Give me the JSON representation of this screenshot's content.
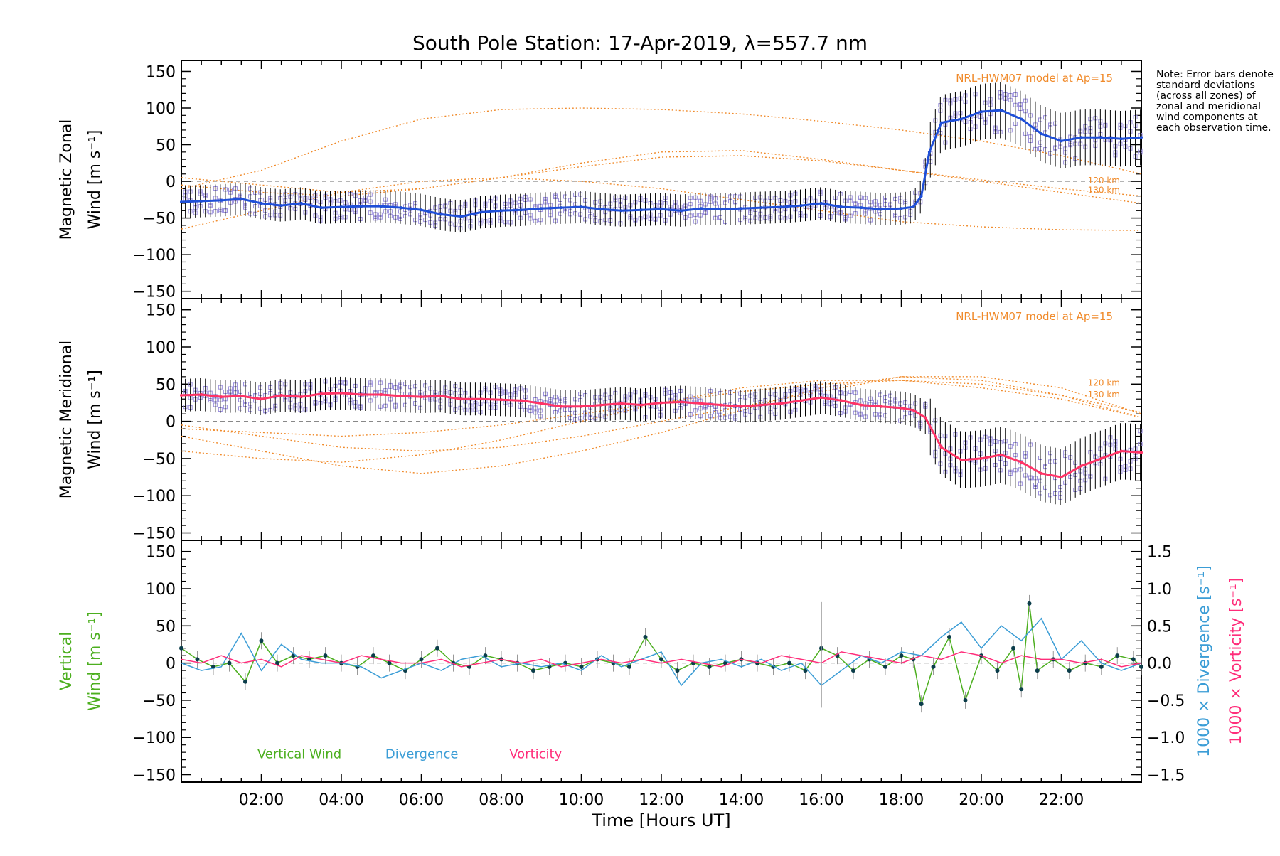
{
  "title": "South Pole Station: 17-Apr-2019, λ=557.7 nm",
  "note": "Note: Error bars denote standard deviations (across all zones) of zonal and meridional wind components at each observation time.",
  "colors": {
    "zonal": "#1f4fd8",
    "zonal_light": "#5aa6e8",
    "meridional": "#ff3366",
    "vertical": "#4caf1f",
    "divergence": "#3b9dd6",
    "vorticity": "#ff2d7a",
    "model": "#f08a2a",
    "scatter": "#9a8fdc",
    "errorbar": "#000000"
  },
  "chart_data": [
    {
      "id": "zonal",
      "type": "line",
      "title": "South Pole Station: 17-Apr-2019, λ=557.7 nm",
      "ylabel_line1": "Magnetic Zonal",
      "ylabel_line2": "Wind [m s⁻¹]",
      "xlim": [
        0,
        24
      ],
      "ylim": [
        -160,
        165
      ],
      "y_ticks": [
        150,
        100,
        50,
        0,
        -50,
        -100,
        -150
      ],
      "y_tick_labels": [
        "150",
        "100",
        "50",
        "0",
        "−50",
        "−100",
        "−150"
      ],
      "model_label": "NRL-HWM07 model at Ap=15",
      "model_heights": [
        "120 km",
        "130 km"
      ],
      "series": [
        {
          "name": "Magnetic Zonal Wind",
          "x": [
            0.0,
            0.5,
            1.0,
            1.5,
            2.0,
            2.5,
            3.0,
            3.5,
            4.0,
            4.5,
            5.0,
            5.5,
            6.0,
            6.5,
            7.0,
            7.5,
            8.0,
            8.5,
            9.0,
            9.5,
            10.0,
            10.5,
            11.0,
            11.5,
            12.0,
            12.5,
            13.0,
            13.5,
            14.0,
            14.5,
            15.0,
            15.5,
            16.0,
            16.5,
            17.0,
            17.5,
            18.0,
            18.3,
            18.5,
            18.7,
            19.0,
            19.5,
            20.0,
            20.5,
            21.0,
            21.5,
            22.0,
            22.5,
            23.0,
            23.5,
            24.0
          ],
          "values": [
            -28,
            -27,
            -26,
            -24,
            -30,
            -33,
            -30,
            -36,
            -35,
            -34,
            -34,
            -36,
            -39,
            -45,
            -48,
            -42,
            -40,
            -39,
            -37,
            -36,
            -35,
            -38,
            -40,
            -39,
            -38,
            -40,
            -37,
            -38,
            -37,
            -36,
            -35,
            -33,
            -30,
            -35,
            -36,
            -38,
            -37,
            -35,
            -20,
            40,
            80,
            85,
            95,
            97,
            85,
            65,
            55,
            60,
            60,
            58,
            60
          ]
        }
      ],
      "model_curves": [
        {
          "name": "model-a",
          "x": [
            0,
            2,
            4,
            6,
            8,
            10,
            12,
            14,
            16,
            18,
            20,
            22,
            24
          ],
          "values": [
            -10,
            15,
            55,
            85,
            98,
            100,
            98,
            92,
            82,
            70,
            55,
            35,
            10
          ]
        },
        {
          "name": "model-b",
          "x": [
            0,
            2,
            4,
            6,
            8,
            10,
            12,
            14,
            16,
            18,
            20,
            22,
            24
          ],
          "values": [
            5,
            -5,
            -15,
            -10,
            5,
            25,
            40,
            42,
            30,
            15,
            0,
            -15,
            -30
          ]
        },
        {
          "name": "model-c",
          "x": [
            0,
            2,
            4,
            6,
            8,
            10,
            12,
            14,
            16,
            18,
            20,
            22,
            24
          ],
          "values": [
            -5,
            -15,
            -20,
            -10,
            5,
            20,
            33,
            35,
            28,
            15,
            2,
            -10,
            -20
          ]
        },
        {
          "name": "model-d",
          "x": [
            0,
            2,
            4,
            6,
            8,
            10,
            12,
            14,
            16,
            18,
            20,
            22,
            24
          ],
          "values": [
            -65,
            -40,
            -15,
            0,
            5,
            0,
            -10,
            -25,
            -40,
            -55,
            -62,
            -66,
            -67
          ]
        }
      ]
    },
    {
      "id": "meridional",
      "type": "line",
      "ylabel_line1": "Magnetic Meridional",
      "ylabel_line2": "Wind [m s⁻¹]",
      "xlim": [
        0,
        24
      ],
      "ylim": [
        -160,
        165
      ],
      "y_ticks": [
        150,
        100,
        50,
        0,
        -50,
        -100,
        -150
      ],
      "y_tick_labels": [
        "150",
        "100",
        "50",
        "0",
        "−50",
        "−100",
        "−150"
      ],
      "model_label": "NRL-HWM07 model at Ap=15",
      "model_heights": [
        "120 km",
        "130 km"
      ],
      "series": [
        {
          "name": "Magnetic Meridional Wind",
          "x": [
            0.0,
            0.5,
            1.0,
            1.5,
            2.0,
            2.5,
            3.0,
            3.5,
            4.0,
            4.5,
            5.0,
            5.5,
            6.0,
            6.5,
            7.0,
            7.5,
            8.0,
            8.5,
            9.0,
            9.5,
            10.0,
            10.5,
            11.0,
            11.5,
            12.0,
            12.5,
            13.0,
            13.5,
            14.0,
            14.5,
            15.0,
            15.5,
            16.0,
            16.5,
            17.0,
            17.5,
            18.0,
            18.3,
            18.6,
            19.0,
            19.5,
            20.0,
            20.5,
            21.0,
            21.5,
            22.0,
            22.5,
            23.0,
            23.5,
            24.0
          ],
          "values": [
            35,
            36,
            33,
            34,
            30,
            35,
            33,
            37,
            38,
            36,
            36,
            34,
            33,
            34,
            30,
            30,
            29,
            28,
            24,
            20,
            20,
            22,
            24,
            22,
            25,
            26,
            24,
            22,
            20,
            22,
            24,
            28,
            32,
            28,
            22,
            20,
            18,
            15,
            5,
            -35,
            -52,
            -50,
            -45,
            -55,
            -70,
            -75,
            -60,
            -50,
            -40,
            -42
          ]
        }
      ],
      "model_curves": [
        {
          "name": "model-a",
          "x": [
            0,
            2,
            4,
            6,
            8,
            10,
            12,
            14,
            16,
            18,
            20,
            22,
            24
          ],
          "values": [
            -5,
            -20,
            -35,
            -40,
            -35,
            -20,
            0,
            20,
            40,
            60,
            60,
            45,
            10
          ]
        },
        {
          "name": "model-b",
          "x": [
            0,
            2,
            4,
            6,
            8,
            10,
            12,
            14,
            16,
            18,
            20,
            22,
            24
          ],
          "values": [
            -20,
            -40,
            -60,
            -70,
            -60,
            -40,
            -15,
            15,
            45,
            60,
            55,
            35,
            5
          ]
        },
        {
          "name": "model-c",
          "x": [
            0,
            2,
            4,
            6,
            8,
            10,
            12,
            14,
            16,
            18,
            20,
            22,
            24
          ],
          "values": [
            -10,
            -15,
            -20,
            -15,
            -5,
            10,
            25,
            40,
            50,
            55,
            50,
            35,
            12
          ]
        },
        {
          "name": "model-d",
          "x": [
            0,
            2,
            4,
            6,
            8,
            10,
            12,
            14,
            16,
            18,
            20,
            22,
            24
          ],
          "values": [
            -40,
            -50,
            -55,
            -45,
            -25,
            0,
            25,
            45,
            55,
            55,
            45,
            30,
            5
          ]
        }
      ]
    },
    {
      "id": "vertical",
      "type": "line",
      "ylabel_line1": "Vertical",
      "ylabel_line2": "Wind [m s⁻¹]",
      "ylabel_right1": "1000 × Divergence [s⁻¹]",
      "ylabel_right2": "1000 × Vorticity [s⁻¹]",
      "xlabel": "Time [Hours UT]",
      "xlim": [
        0,
        24
      ],
      "ylim": [
        -160,
        165
      ],
      "y_ticks": [
        150,
        100,
        50,
        0,
        -50,
        -100,
        -150
      ],
      "y_tick_labels": [
        "150",
        "100",
        "50",
        "0",
        "−50",
        "−100",
        "−150"
      ],
      "y2lim": [
        -1.6,
        1.65
      ],
      "y2_ticks": [
        1.5,
        1.0,
        0.5,
        0.0,
        -0.5,
        -1.0,
        -1.5
      ],
      "y2_tick_labels": [
        "1.5",
        "1.0",
        "0.5",
        "0.0",
        "−0.5",
        "−1.0",
        "−1.5"
      ],
      "x_ticks": [
        2,
        4,
        6,
        8,
        10,
        12,
        14,
        16,
        18,
        20,
        22
      ],
      "x_tick_labels": [
        "02:00",
        "04:00",
        "06:00",
        "08:00",
        "10:00",
        "12:00",
        "14:00",
        "16:00",
        "18:00",
        "20:00",
        "22:00"
      ],
      "legend": [
        "Vertical Wind",
        "Divergence",
        "Vorticity"
      ],
      "series": [
        {
          "name": "Vertical Wind",
          "axis": "left",
          "x": [
            0.0,
            0.4,
            0.8,
            1.2,
            1.6,
            2.0,
            2.4,
            2.8,
            3.2,
            3.6,
            4.0,
            4.4,
            4.8,
            5.2,
            5.6,
            6.0,
            6.4,
            6.8,
            7.2,
            7.6,
            8.0,
            8.4,
            8.8,
            9.2,
            9.6,
            10.0,
            10.4,
            10.8,
            11.2,
            11.6,
            12.0,
            12.4,
            12.8,
            13.2,
            13.6,
            14.0,
            14.4,
            14.8,
            15.2,
            15.6,
            16.0,
            16.4,
            16.8,
            17.2,
            17.6,
            18.0,
            18.3,
            18.5,
            18.8,
            19.2,
            19.6,
            20.0,
            20.4,
            20.8,
            21.0,
            21.2,
            21.4,
            21.8,
            22.2,
            22.6,
            23.0,
            23.4,
            23.8,
            24.0
          ],
          "values": [
            20,
            5,
            -5,
            0,
            -25,
            30,
            0,
            10,
            5,
            10,
            0,
            -5,
            10,
            0,
            -10,
            5,
            20,
            0,
            -5,
            10,
            5,
            0,
            -10,
            -5,
            0,
            -5,
            5,
            0,
            -5,
            35,
            5,
            -10,
            0,
            -5,
            0,
            5,
            0,
            -5,
            0,
            -10,
            20,
            10,
            -10,
            5,
            -5,
            10,
            5,
            -55,
            -5,
            35,
            -50,
            10,
            -10,
            20,
            -35,
            80,
            -10,
            5,
            -10,
            0,
            -5,
            10,
            5,
            -5
          ]
        },
        {
          "name": "Divergence",
          "axis": "right",
          "x": [
            0.0,
            0.5,
            1.0,
            1.5,
            2.0,
            2.5,
            3.0,
            3.5,
            4.0,
            4.5,
            5.0,
            5.5,
            6.0,
            6.5,
            7.0,
            7.5,
            8.0,
            8.5,
            9.0,
            9.5,
            10.0,
            10.5,
            11.0,
            11.5,
            12.0,
            12.5,
            13.0,
            13.5,
            14.0,
            14.5,
            15.0,
            15.5,
            16.0,
            16.5,
            17.0,
            17.5,
            18.0,
            18.5,
            19.0,
            19.5,
            20.0,
            20.5,
            21.0,
            21.5,
            22.0,
            22.5,
            23.0,
            23.5,
            24.0
          ],
          "values": [
            0.0,
            -0.1,
            -0.05,
            0.4,
            -0.1,
            0.25,
            0.05,
            0.0,
            0.0,
            -0.05,
            -0.2,
            -0.1,
            0.0,
            -0.1,
            0.05,
            0.1,
            -0.05,
            0.0,
            -0.05,
            0.0,
            -0.1,
            0.1,
            -0.05,
            0.05,
            0.15,
            -0.3,
            0.0,
            0.05,
            -0.05,
            0.05,
            -0.1,
            0.0,
            -0.3,
            -0.1,
            0.1,
            0.0,
            0.15,
            0.1,
            0.35,
            0.55,
            0.2,
            0.5,
            0.3,
            0.6,
            0.05,
            0.3,
            0.0,
            -0.1,
            0.0
          ]
        },
        {
          "name": "Vorticity",
          "axis": "right",
          "x": [
            0.0,
            0.5,
            1.0,
            1.5,
            2.0,
            2.5,
            3.0,
            3.5,
            4.0,
            4.5,
            5.0,
            5.5,
            6.0,
            6.5,
            7.0,
            7.5,
            8.0,
            8.5,
            9.0,
            9.5,
            10.0,
            10.5,
            11.0,
            11.5,
            12.0,
            12.5,
            13.0,
            13.5,
            14.0,
            14.5,
            15.0,
            15.5,
            16.0,
            16.5,
            17.0,
            17.5,
            18.0,
            18.5,
            19.0,
            19.5,
            20.0,
            20.5,
            21.0,
            21.5,
            22.0,
            22.5,
            23.0,
            23.5,
            24.0
          ],
          "values": [
            0.05,
            0.0,
            0.1,
            0.0,
            0.05,
            -0.05,
            0.1,
            0.05,
            0.0,
            0.1,
            0.05,
            0.0,
            0.0,
            0.05,
            -0.05,
            0.0,
            0.05,
            0.0,
            0.05,
            -0.05,
            0.0,
            0.05,
            0.0,
            0.05,
            0.0,
            0.05,
            0.0,
            -0.05,
            0.05,
            0.0,
            0.1,
            0.05,
            0.0,
            0.15,
            0.1,
            0.05,
            0.0,
            0.1,
            0.05,
            0.15,
            0.1,
            0.0,
            0.1,
            0.05,
            0.05,
            0.0,
            0.05,
            -0.05,
            0.0
          ]
        }
      ]
    }
  ]
}
